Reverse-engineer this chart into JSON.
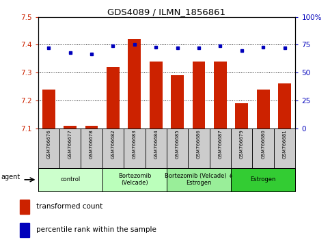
{
  "title": "GDS4089 / ILMN_1856861",
  "samples": [
    "GSM766676",
    "GSM766677",
    "GSM766678",
    "GSM766682",
    "GSM766683",
    "GSM766684",
    "GSM766685",
    "GSM766686",
    "GSM766687",
    "GSM766679",
    "GSM766680",
    "GSM766681"
  ],
  "red_values": [
    7.24,
    7.11,
    7.11,
    7.32,
    7.42,
    7.34,
    7.29,
    7.34,
    7.34,
    7.19,
    7.24,
    7.26
  ],
  "blue_values": [
    72,
    68,
    67,
    74,
    75,
    73,
    72,
    72,
    74,
    70,
    73,
    72
  ],
  "ylim_left": [
    7.1,
    7.5
  ],
  "ylim_right": [
    0,
    100
  ],
  "yticks_left": [
    7.1,
    7.2,
    7.3,
    7.4,
    7.5
  ],
  "yticks_right": [
    0,
    25,
    50,
    75,
    100
  ],
  "group_data": [
    {
      "label": "control",
      "start": 0,
      "end": 2,
      "color": "#ccffcc"
    },
    {
      "label": "Bortezomib\n(Velcade)",
      "start": 3,
      "end": 5,
      "color": "#bbffbb"
    },
    {
      "label": "Bortezomib (Velcade) +\nEstrogen",
      "start": 6,
      "end": 8,
      "color": "#99ee99"
    },
    {
      "label": "Estrogen",
      "start": 9,
      "end": 11,
      "color": "#33cc33"
    }
  ],
  "bar_color": "#cc2200",
  "dot_color": "#0000bb",
  "plot_bg": "#ffffff",
  "tick_bg": "#cccccc",
  "legend_red": "transformed count",
  "legend_blue": "percentile rank within the sample",
  "agent_label": "agent",
  "left_color": "#cc2200",
  "right_color": "#0000bb",
  "bar_width": 0.6
}
